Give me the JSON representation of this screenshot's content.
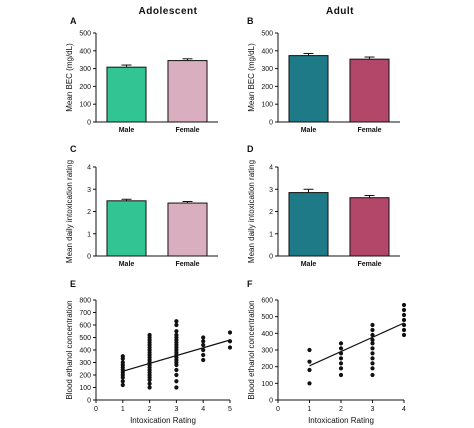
{
  "headers": {
    "left": "Adolescent",
    "right": "Adult"
  },
  "colors": {
    "male_adolescent": "#33c494",
    "female_adolescent": "#d9aebf",
    "male_adult": "#1e7a87",
    "female_adult": "#b3476a",
    "dots": "#111111"
  },
  "chart_data": [
    {
      "panel": "A",
      "type": "bar",
      "categories": [
        "Male",
        "Female"
      ],
      "values": [
        308,
        345
      ],
      "errors": [
        12,
        10
      ],
      "ylabel": "Mean BEC (mg/dL)",
      "ylim": [
        0,
        500
      ],
      "yticks": [
        "0",
        "100",
        "200",
        "300",
        "400",
        "500"
      ],
      "colors": [
        "#33c494",
        "#d9aebf"
      ]
    },
    {
      "panel": "B",
      "type": "bar",
      "categories": [
        "Male",
        "Female"
      ],
      "values": [
        373,
        353
      ],
      "errors": [
        12,
        12
      ],
      "ylabel": "Mean BEC (mg/dL)",
      "ylim": [
        0,
        500
      ],
      "yticks": [
        "0",
        "100",
        "200",
        "300",
        "400",
        "500"
      ],
      "colors": [
        "#1e7a87",
        "#b3476a"
      ]
    },
    {
      "panel": "C",
      "type": "bar",
      "categories": [
        "Male",
        "Female"
      ],
      "values": [
        2.48,
        2.38
      ],
      "errors": [
        0.07,
        0.07
      ],
      "ylabel": "Mean daily intoxication rating",
      "ylim": [
        0,
        4
      ],
      "yticks": [
        "0",
        "1",
        "2",
        "3",
        "4"
      ],
      "colors": [
        "#33c494",
        "#d9aebf"
      ]
    },
    {
      "panel": "D",
      "type": "bar",
      "categories": [
        "Male",
        "Female"
      ],
      "values": [
        2.85,
        2.62
      ],
      "errors": [
        0.15,
        0.1
      ],
      "ylabel": "Mean daily intoxication rating",
      "ylim": [
        0,
        4
      ],
      "yticks": [
        "0",
        "1",
        "2",
        "3",
        "4"
      ],
      "colors": [
        "#1e7a87",
        "#b3476a"
      ]
    },
    {
      "panel": "E",
      "type": "scatter",
      "xlabel": "Intoxication  Rating",
      "ylabel": "Blood ethanol concentration",
      "xlim": [
        0,
        5
      ],
      "ylim": [
        0,
        800
      ],
      "xticks": [
        "0",
        "1",
        "2",
        "3",
        "4",
        "5"
      ],
      "yticks": [
        "0",
        "100",
        "200",
        "300",
        "400",
        "500",
        "600",
        "700",
        "800"
      ],
      "points": [
        [
          1,
          120
        ],
        [
          1,
          150
        ],
        [
          1,
          180
        ],
        [
          1,
          200
        ],
        [
          1,
          220
        ],
        [
          1,
          240
        ],
        [
          1,
          260
        ],
        [
          1,
          280
        ],
        [
          1,
          300
        ],
        [
          1,
          330
        ],
        [
          1,
          350
        ],
        [
          2,
          100
        ],
        [
          2,
          130
        ],
        [
          2,
          160
        ],
        [
          2,
          180
        ],
        [
          2,
          200
        ],
        [
          2,
          220
        ],
        [
          2,
          240
        ],
        [
          2,
          260
        ],
        [
          2,
          280
        ],
        [
          2,
          300
        ],
        [
          2,
          320
        ],
        [
          2,
          340
        ],
        [
          2,
          360
        ],
        [
          2,
          380
        ],
        [
          2,
          400
        ],
        [
          2,
          420
        ],
        [
          2,
          440
        ],
        [
          2,
          460
        ],
        [
          2,
          480
        ],
        [
          2,
          500
        ],
        [
          2,
          520
        ],
        [
          3,
          100
        ],
        [
          3,
          150
        ],
        [
          3,
          200
        ],
        [
          3,
          240
        ],
        [
          3,
          280
        ],
        [
          3,
          300
        ],
        [
          3,
          320
        ],
        [
          3,
          340
        ],
        [
          3,
          360
        ],
        [
          3,
          380
        ],
        [
          3,
          400
        ],
        [
          3,
          420
        ],
        [
          3,
          440
        ],
        [
          3,
          460
        ],
        [
          3,
          480
        ],
        [
          3,
          500
        ],
        [
          3,
          520
        ],
        [
          3,
          550
        ],
        [
          3,
          600
        ],
        [
          3,
          630
        ],
        [
          4,
          320
        ],
        [
          4,
          360
        ],
        [
          4,
          400
        ],
        [
          4,
          440
        ],
        [
          4,
          470
        ],
        [
          4,
          500
        ],
        [
          5,
          420
        ],
        [
          5,
          470
        ],
        [
          5,
          540
        ]
      ],
      "trend": [
        [
          1,
          230
        ],
        [
          5,
          480
        ]
      ]
    },
    {
      "panel": "F",
      "type": "scatter",
      "xlabel": "Intoxication  Rating",
      "ylabel": "Blood ethanol concentration",
      "xlim": [
        0,
        4
      ],
      "ylim": [
        0,
        600
      ],
      "xticks": [
        "0",
        "1",
        "2",
        "3",
        "4"
      ],
      "yticks": [
        "0",
        "100",
        "200",
        "300",
        "400",
        "500",
        "600"
      ],
      "points": [
        [
          1,
          100
        ],
        [
          1,
          180
        ],
        [
          1,
          230
        ],
        [
          1,
          300
        ],
        [
          2,
          150
        ],
        [
          2,
          190
        ],
        [
          2,
          220
        ],
        [
          2,
          250
        ],
        [
          2,
          280
        ],
        [
          2,
          310
        ],
        [
          2,
          340
        ],
        [
          3,
          150
        ],
        [
          3,
          190
        ],
        [
          3,
          220
        ],
        [
          3,
          250
        ],
        [
          3,
          280
        ],
        [
          3,
          310
        ],
        [
          3,
          340
        ],
        [
          3,
          360
        ],
        [
          3,
          390
        ],
        [
          3,
          420
        ],
        [
          3,
          450
        ],
        [
          4,
          390
        ],
        [
          4,
          420
        ],
        [
          4,
          450
        ],
        [
          4,
          480
        ],
        [
          4,
          510
        ],
        [
          4,
          540
        ],
        [
          4,
          570
        ]
      ],
      "trend": [
        [
          1,
          205
        ],
        [
          4,
          462
        ]
      ]
    }
  ]
}
